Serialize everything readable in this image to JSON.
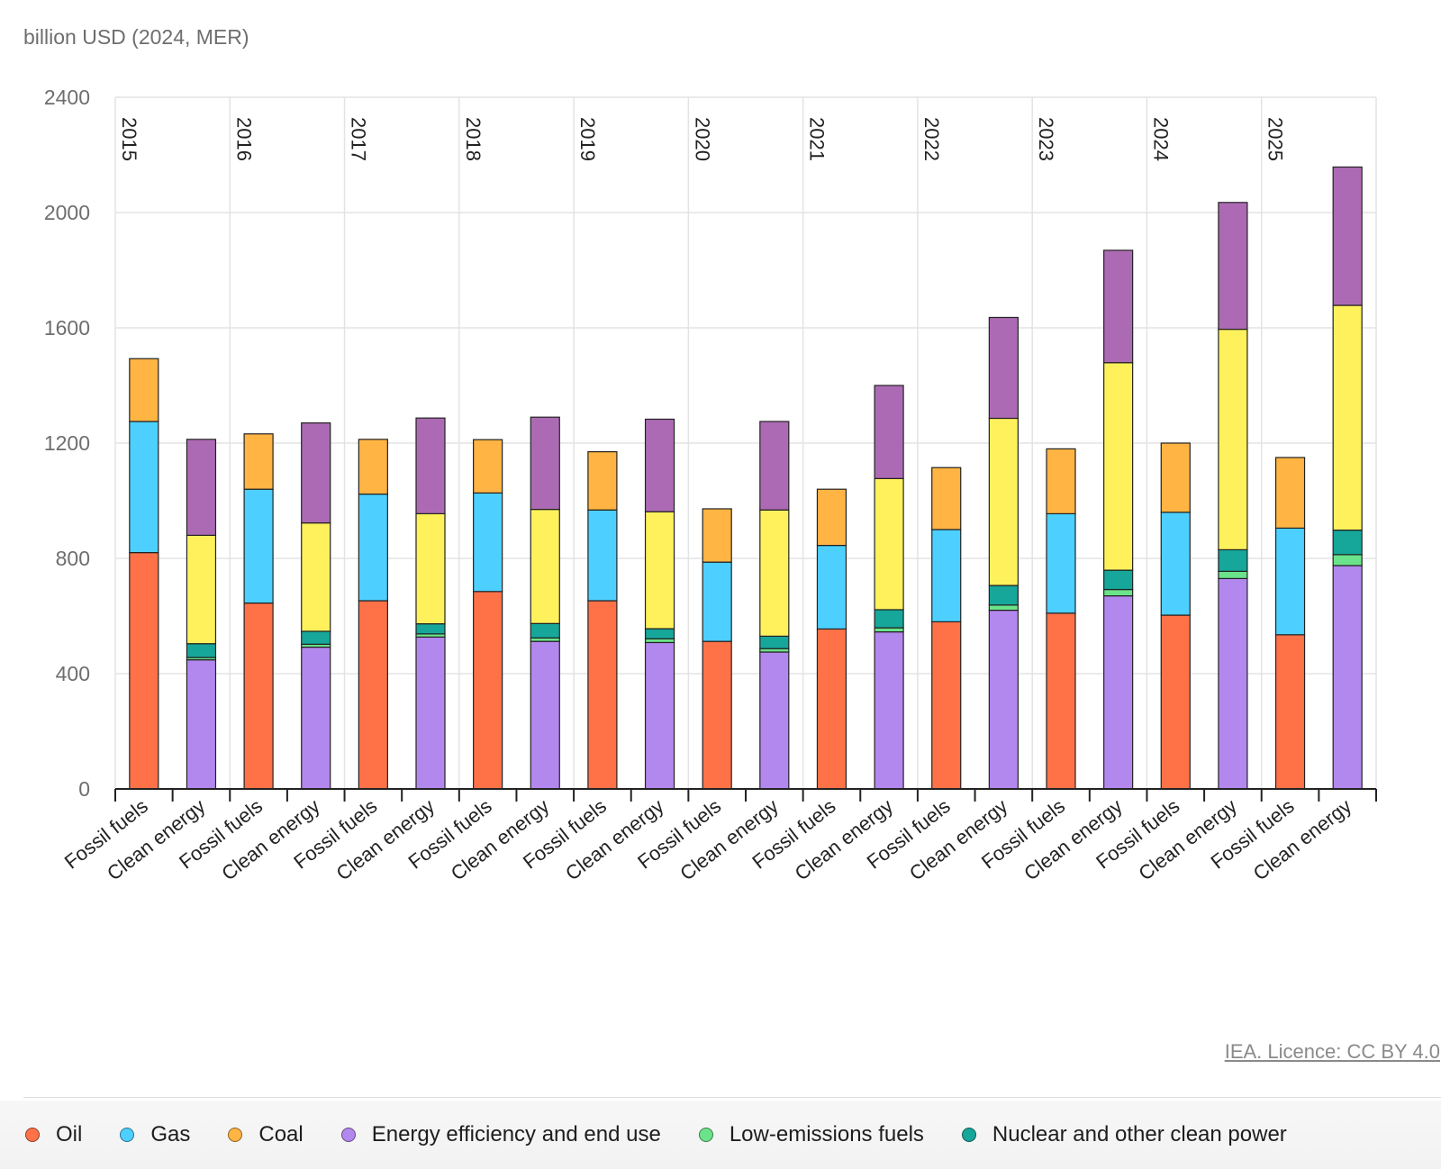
{
  "header": {
    "unit_label": "billion USD (2024, MER)"
  },
  "footer": {
    "license_text": "IEA. Licence: CC BY 4.0"
  },
  "legend": [
    {
      "key": "oil",
      "label": "Oil",
      "color": "#ff7248"
    },
    {
      "key": "gas",
      "label": "Gas",
      "color": "#4dd0ff"
    },
    {
      "key": "coal",
      "label": "Coal",
      "color": "#ffb443"
    },
    {
      "key": "efficiency",
      "label": "Energy efficiency and end use",
      "color": "#b388ee"
    },
    {
      "key": "low_emissions",
      "label": "Low-emissions fuels",
      "color": "#6be38a"
    },
    {
      "key": "nuclear",
      "label": "Nuclear and other clean power",
      "color": "#16a69a"
    }
  ],
  "chart_data": {
    "type": "bar",
    "stacked": true,
    "ylabel": "billion USD (2024, MER)",
    "ylim": [
      0,
      2400
    ],
    "yticks": [
      0,
      400,
      800,
      1200,
      1600,
      2000,
      2400
    ],
    "grid": true,
    "groups": [
      "2015",
      "2016",
      "2017",
      "2018",
      "2019",
      "2020",
      "2021",
      "2022",
      "2023",
      "2024",
      "2025"
    ],
    "categories_per_group": [
      "Fossil fuels",
      "Clean energy"
    ],
    "series_colors": {
      "Oil": "#ff7248",
      "Gas": "#4dd0ff",
      "Coal": "#ffb443",
      "Energy efficiency and end use": "#b388ee",
      "Low-emissions fuels": "#6be38a",
      "Nuclear and other clean power": "#16a69a",
      "Renewable power": "#fff15c",
      "Grids and storage": "#ad6ab4"
    },
    "fossil_fuels": {
      "Oil": [
        820,
        645,
        653,
        685,
        653,
        512,
        555,
        580,
        610,
        603,
        535
      ],
      "Gas": [
        455,
        395,
        370,
        342,
        315,
        275,
        290,
        320,
        345,
        357,
        370
      ],
      "Coal": [
        218,
        192,
        190,
        185,
        202,
        185,
        195,
        215,
        225,
        240,
        245
      ]
    },
    "clean_energy": {
      "Energy efficiency and end use": [
        448,
        492,
        527,
        512,
        508,
        475,
        545,
        620,
        670,
        730,
        775
      ],
      "Low-emissions fuels": [
        8,
        10,
        11,
        12,
        13,
        12,
        14,
        18,
        22,
        25,
        38
      ],
      "Nuclear and other clean power": [
        48,
        45,
        35,
        50,
        35,
        43,
        63,
        68,
        67,
        75,
        85
      ],
      "Renewable power": [
        376,
        376,
        382,
        396,
        406,
        438,
        455,
        580,
        720,
        765,
        780
      ],
      "Grids and storage": [
        333,
        347,
        332,
        320,
        321,
        307,
        323,
        350,
        390,
        440,
        480
      ]
    }
  }
}
